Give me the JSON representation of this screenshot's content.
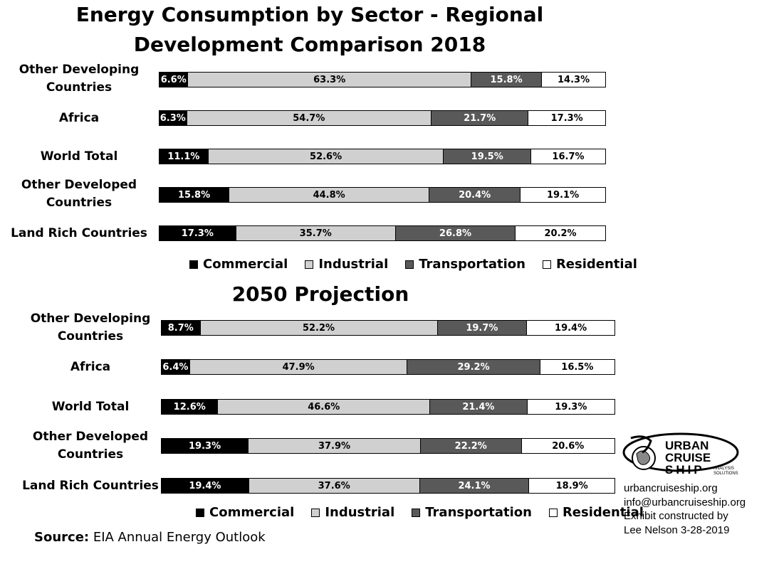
{
  "chart_data": [
    {
      "type": "bar",
      "stacked": true,
      "orientation": "horizontal",
      "title": "Energy Consumption by Sector - Regional Development Comparison 2018",
      "title_lines": [
        "Energy Consumption by Sector - Regional",
        "Development Comparison 2018"
      ],
      "categories": [
        "Other Developing Countries",
        "Africa",
        "World Total",
        "Other Developed Countries",
        "Land Rich Countries"
      ],
      "category_lines": [
        [
          "Other Developing",
          "Countries"
        ],
        [
          "Africa"
        ],
        [
          "World Total"
        ],
        [
          "Other Developed",
          "Countries"
        ],
        [
          "Land Rich Countries"
        ]
      ],
      "series": [
        {
          "name": "Commercial",
          "values": [
            6.6,
            6.3,
            11.1,
            15.8,
            17.3
          ],
          "labels": [
            "6.6%",
            "6.3%",
            "11.1%",
            "15.8%",
            "17.3%"
          ]
        },
        {
          "name": "Industrial",
          "values": [
            63.3,
            54.7,
            52.6,
            44.8,
            35.7
          ],
          "labels": [
            "63.3%",
            "54.7%",
            "52.6%",
            "44.8%",
            "35.7%"
          ]
        },
        {
          "name": "Transportation",
          "values": [
            15.8,
            21.7,
            19.5,
            20.4,
            26.8
          ],
          "labels": [
            "15.8%",
            "21.7%",
            "19.5%",
            "20.4%",
            "26.8%"
          ]
        },
        {
          "name": "Residential",
          "values": [
            14.3,
            17.3,
            16.7,
            19.1,
            20.2
          ],
          "labels": [
            "14.3%",
            "17.3%",
            "16.7%",
            "19.1%",
            "20.2%"
          ]
        }
      ],
      "legend_position": "bottom"
    },
    {
      "type": "bar",
      "stacked": true,
      "orientation": "horizontal",
      "title": "2050 Projection",
      "title_lines": [
        "2050 Projection"
      ],
      "categories": [
        "Other Developing Countries",
        "Africa",
        "World Total",
        "Other Developed Countries",
        "Land Rich Countries"
      ],
      "category_lines": [
        [
          "Other Developing",
          "Countries"
        ],
        [
          "Africa"
        ],
        [
          "World Total"
        ],
        [
          "Other Developed",
          "Countries"
        ],
        [
          "Land Rich Countries"
        ]
      ],
      "series": [
        {
          "name": "Commercial",
          "values": [
            8.7,
            6.4,
            12.6,
            19.3,
            19.4
          ],
          "labels": [
            "8.7%",
            "6.4%",
            "12.6%",
            "19.3%",
            "19.4%"
          ]
        },
        {
          "name": "Industrial",
          "values": [
            52.2,
            47.9,
            46.6,
            37.9,
            37.6
          ],
          "labels": [
            "52.2%",
            "47.9%",
            "46.6%",
            "37.9%",
            "37.6%"
          ]
        },
        {
          "name": "Transportation",
          "values": [
            19.7,
            29.2,
            21.4,
            22.2,
            24.1
          ],
          "labels": [
            "19.7%",
            "29.2%",
            "21.4%",
            "22.2%",
            "24.1%"
          ]
        },
        {
          "name": "Residential",
          "values": [
            19.4,
            16.5,
            19.3,
            20.6,
            18.9
          ],
          "labels": [
            "19.4%",
            "16.5%",
            "19.3%",
            "20.6%",
            "18.9%"
          ]
        }
      ],
      "legend_position": "bottom"
    }
  ],
  "colors": {
    "Commercial": "#000000",
    "Industrial": "#d0d0d0",
    "Transportation": "#595959",
    "Residential": "#ffffff"
  },
  "text_colors": {
    "Commercial": "#ffffff",
    "Industrial": "#000000",
    "Transportation": "#ffffff",
    "Residential": "#000000"
  },
  "source": {
    "label": "Source:",
    "text": "EIA Annual Energy Outlook"
  },
  "logo": {
    "line1": "URBAN",
    "line2": "CRUISE",
    "line3": "SHIP",
    "tag1": "ANALYSIS",
    "tag2": "SOLUTIONS"
  },
  "credits": [
    "urbancruiseship.org",
    "info@urbancruiseship.org",
    "Exhibit constructed by",
    "Lee Nelson 3-28-2019"
  ]
}
